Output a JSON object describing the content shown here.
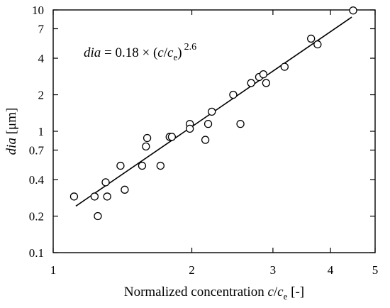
{
  "chart_data": {
    "type": "scatter",
    "xscale": "log",
    "yscale": "log",
    "xlim": [
      1,
      5
    ],
    "ylim": [
      0.1,
      10
    ],
    "grid": false,
    "xlabel": {
      "prefix": "Normalized concentration ",
      "var": "c",
      "slash": "/",
      "var2": "c",
      "sub": "e",
      "suffix": " [-]"
    },
    "ylabel": {
      "var": "dia",
      "unit": " [μm]"
    },
    "xticks": [
      {
        "value": 1,
        "label": "1"
      },
      {
        "value": 2,
        "label": "2"
      },
      {
        "value": 3,
        "label": "3"
      },
      {
        "value": 4,
        "label": "4"
      },
      {
        "value": 5,
        "label": "5"
      }
    ],
    "yticks": [
      {
        "value": 0.1,
        "label": "0.1"
      },
      {
        "value": 0.2,
        "label": "0.2"
      },
      {
        "value": 0.4,
        "label": "0.4"
      },
      {
        "value": 0.7,
        "label": "0.7"
      },
      {
        "value": 1,
        "label": "1"
      },
      {
        "value": 2,
        "label": "2"
      },
      {
        "value": 4,
        "label": "4"
      },
      {
        "value": 7,
        "label": "7"
      },
      {
        "value": 10,
        "label": "10"
      }
    ],
    "equation": {
      "lhs": "dia",
      "mid": " = 0.18 × (",
      "var": "c",
      "slash": "/",
      "var2": "c",
      "sub": "e",
      "close": ")",
      "exponent": "2.6"
    },
    "fit": {
      "coefficient": 0.18,
      "exponent": 2.6,
      "x_range": [
        1.12,
        4.45
      ]
    },
    "points": [
      {
        "x": 1.11,
        "y": 0.29
      },
      {
        "x": 1.23,
        "y": 0.29
      },
      {
        "x": 1.25,
        "y": 0.2
      },
      {
        "x": 1.3,
        "y": 0.38
      },
      {
        "x": 1.31,
        "y": 0.29
      },
      {
        "x": 1.4,
        "y": 0.52
      },
      {
        "x": 1.43,
        "y": 0.33
      },
      {
        "x": 1.56,
        "y": 0.52
      },
      {
        "x": 1.59,
        "y": 0.75
      },
      {
        "x": 1.6,
        "y": 0.88
      },
      {
        "x": 1.71,
        "y": 0.52
      },
      {
        "x": 1.79,
        "y": 0.9
      },
      {
        "x": 1.81,
        "y": 0.9
      },
      {
        "x": 1.98,
        "y": 1.15
      },
      {
        "x": 1.98,
        "y": 1.05
      },
      {
        "x": 2.14,
        "y": 0.85
      },
      {
        "x": 2.17,
        "y": 1.15
      },
      {
        "x": 2.21,
        "y": 1.45
      },
      {
        "x": 2.46,
        "y": 2.0
      },
      {
        "x": 2.55,
        "y": 1.15
      },
      {
        "x": 2.69,
        "y": 2.5
      },
      {
        "x": 2.8,
        "y": 2.8
      },
      {
        "x": 2.86,
        "y": 2.95
      },
      {
        "x": 2.9,
        "y": 2.5
      },
      {
        "x": 3.18,
        "y": 3.4
      },
      {
        "x": 3.63,
        "y": 5.8
      },
      {
        "x": 3.75,
        "y": 5.2
      },
      {
        "x": 4.48,
        "y": 9.9
      }
    ]
  }
}
